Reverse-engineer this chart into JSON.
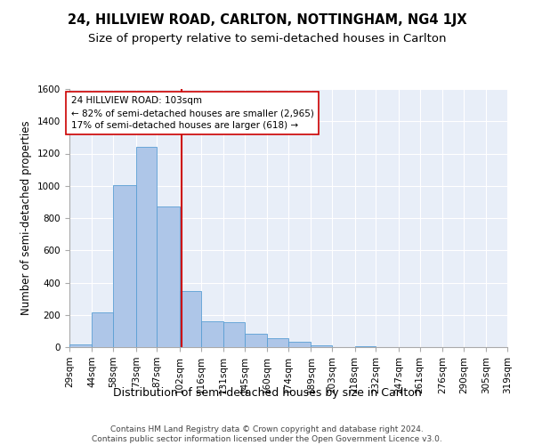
{
  "title": "24, HILLVIEW ROAD, CARLTON, NOTTINGHAM, NG4 1JX",
  "subtitle": "Size of property relative to semi-detached houses in Carlton",
  "xlabel": "Distribution of semi-detached houses by size in Carlton",
  "ylabel": "Number of semi-detached properties",
  "footer_line1": "Contains HM Land Registry data © Crown copyright and database right 2024.",
  "footer_line2": "Contains public sector information licensed under the Open Government Licence v3.0.",
  "bin_labels": [
    "29sqm",
    "44sqm",
    "58sqm",
    "73sqm",
    "87sqm",
    "102sqm",
    "116sqm",
    "131sqm",
    "145sqm",
    "160sqm",
    "174sqm",
    "189sqm",
    "203sqm",
    "218sqm",
    "232sqm",
    "247sqm",
    "261sqm",
    "276sqm",
    "290sqm",
    "305sqm",
    "319sqm"
  ],
  "bin_edges": [
    29,
    44,
    58,
    73,
    87,
    102,
    116,
    131,
    145,
    160,
    174,
    189,
    203,
    218,
    232,
    247,
    261,
    276,
    290,
    305,
    319
  ],
  "bar_values": [
    15,
    215,
    1005,
    1240,
    870,
    350,
    160,
    155,
    85,
    55,
    35,
    10,
    0,
    5,
    0,
    0,
    0,
    0,
    0,
    0
  ],
  "bar_color": "#aec6e8",
  "bar_edge_color": "#5a9fd4",
  "property_size": 103,
  "property_line_color": "#cc0000",
  "annotation_line1": "24 HILLVIEW ROAD: 103sqm",
  "annotation_line2": "← 82% of semi-detached houses are smaller (2,965)",
  "annotation_line3": "17% of semi-detached houses are larger (618) →",
  "annotation_box_color": "#ffffff",
  "annotation_box_edge_color": "#cc0000",
  "bg_color": "#e8eef8",
  "ylim": [
    0,
    1600
  ],
  "yticks": [
    0,
    200,
    400,
    600,
    800,
    1000,
    1200,
    1400,
    1600
  ],
  "title_fontsize": 10.5,
  "subtitle_fontsize": 9.5,
  "ylabel_fontsize": 8.5,
  "xlabel_fontsize": 9,
  "tick_fontsize": 7.5,
  "annotation_fontsize": 7.5,
  "footer_fontsize": 6.5
}
